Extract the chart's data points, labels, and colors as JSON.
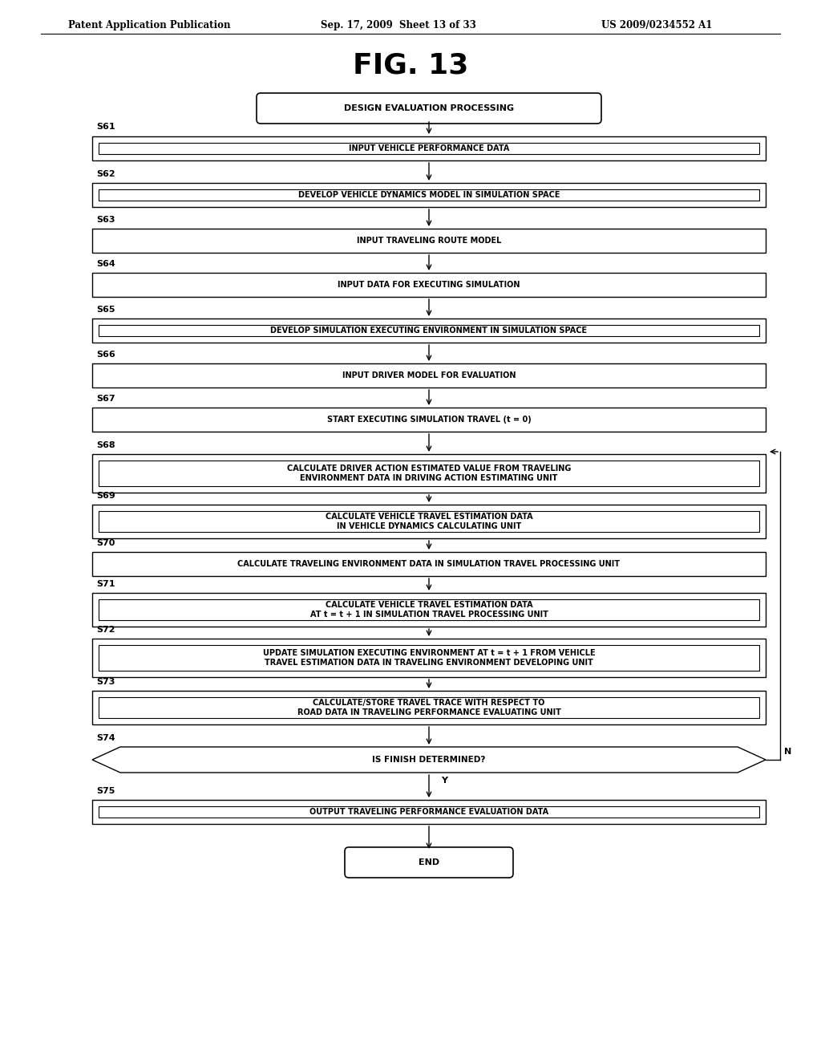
{
  "title": "FIG. 13",
  "header_left": "Patent Application Publication",
  "header_mid": "Sep. 17, 2009  Sheet 13 of 33",
  "header_right": "US 2009/0234552 A1",
  "bg_color": "#ffffff",
  "steps": [
    {
      "id": "start",
      "type": "rounded",
      "label": "DESIGN EVALUATION PROCESSING",
      "step_num": null
    },
    {
      "id": "S61",
      "type": "double_rect",
      "label": "INPUT VEHICLE PERFORMANCE DATA",
      "step_num": "S61"
    },
    {
      "id": "S62",
      "type": "double_rect",
      "label": "DEVELOP VEHICLE DYNAMICS MODEL IN SIMULATION SPACE",
      "step_num": "S62"
    },
    {
      "id": "S63",
      "type": "rect",
      "label": "INPUT TRAVELING ROUTE MODEL",
      "step_num": "S63"
    },
    {
      "id": "S64",
      "type": "rect",
      "label": "INPUT DATA FOR EXECUTING SIMULATION",
      "step_num": "S64"
    },
    {
      "id": "S65",
      "type": "double_rect",
      "label": "DEVELOP SIMULATION EXECUTING ENVIRONMENT IN SIMULATION SPACE",
      "step_num": "S65"
    },
    {
      "id": "S66",
      "type": "rect",
      "label": "INPUT DRIVER MODEL FOR EVALUATION",
      "step_num": "S66"
    },
    {
      "id": "S67",
      "type": "rect",
      "label": "START EXECUTING SIMULATION TRAVEL (t = 0)",
      "step_num": "S67"
    },
    {
      "id": "S68",
      "type": "double_rect",
      "label": "CALCULATE DRIVER ACTION ESTIMATED VALUE FROM TRAVELING\nENVIRONMENT DATA IN DRIVING ACTION ESTIMATING UNIT",
      "step_num": "S68"
    },
    {
      "id": "S69",
      "type": "double_rect",
      "label": "CALCULATE VEHICLE TRAVEL ESTIMATION DATA\nIN VEHICLE DYNAMICS CALCULATING UNIT",
      "step_num": "S69"
    },
    {
      "id": "S70",
      "type": "rect",
      "label": "CALCULATE TRAVELING ENVIRONMENT DATA IN SIMULATION TRAVEL PROCESSING UNIT",
      "step_num": "S70"
    },
    {
      "id": "S71",
      "type": "double_rect",
      "label": "CALCULATE VEHICLE TRAVEL ESTIMATION DATA\nAT t = t + 1 IN SIMULATION TRAVEL PROCESSING UNIT",
      "step_num": "S71"
    },
    {
      "id": "S72",
      "type": "double_rect",
      "label": "UPDATE SIMULATION EXECUTING ENVIRONMENT AT t = t + 1 FROM VEHICLE\nTRAVEL ESTIMATION DATA IN TRAVELING ENVIRONMENT DEVELOPING UNIT",
      "step_num": "S72"
    },
    {
      "id": "S73",
      "type": "double_rect",
      "label": "CALCULATE/STORE TRAVEL TRACE WITH RESPECT TO\nROAD DATA IN TRAVELING PERFORMANCE EVALUATING UNIT",
      "step_num": "S73"
    },
    {
      "id": "S74",
      "type": "diamond",
      "label": "IS FINISH DETERMINED?",
      "step_num": "S74"
    },
    {
      "id": "S75",
      "type": "double_rect",
      "label": "OUTPUT TRAVELING PERFORMANCE EVALUATION DATA",
      "step_num": "S75"
    },
    {
      "id": "end",
      "type": "rounded",
      "label": "END",
      "step_num": null
    }
  ]
}
